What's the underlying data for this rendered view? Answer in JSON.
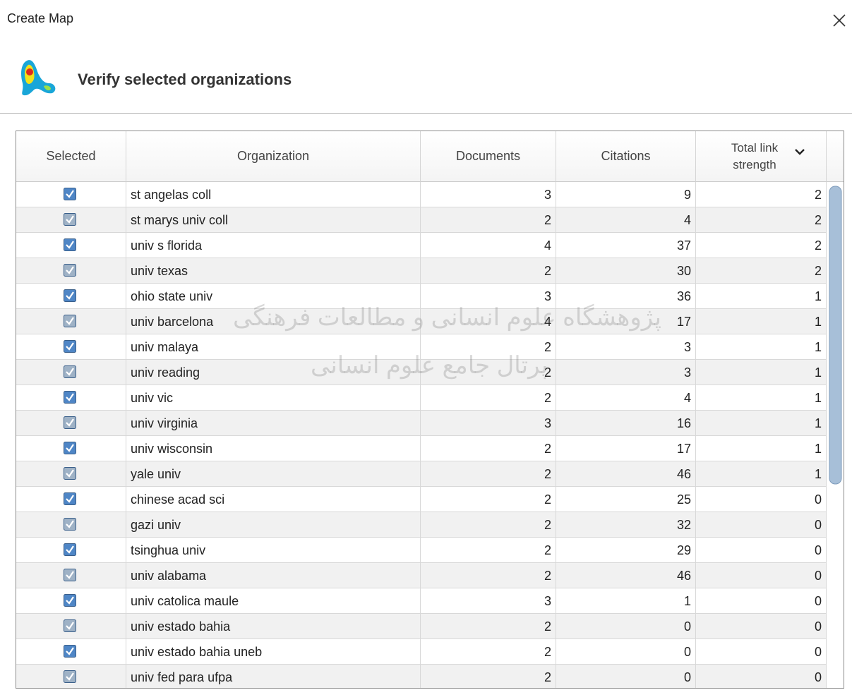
{
  "window": {
    "title": "Create Map"
  },
  "header": {
    "title": "Verify selected organizations"
  },
  "watermark": [
    "پژوهشگاه علوم انسانی و مطالعات فرهنگی",
    "پرتال جامع علوم انسانی"
  ],
  "table": {
    "columns": [
      "Selected",
      "Organization",
      "Documents",
      "Citations",
      "Total link strength"
    ],
    "rows": [
      [
        "st angelas coll",
        3,
        9,
        2
      ],
      [
        "st marys univ coll",
        2,
        4,
        2
      ],
      [
        "univ s florida",
        4,
        37,
        2
      ],
      [
        "univ texas",
        2,
        30,
        2
      ],
      [
        "ohio state univ",
        3,
        36,
        1
      ],
      [
        "univ barcelona",
        4,
        17,
        1
      ],
      [
        "univ malaya",
        2,
        3,
        1
      ],
      [
        "univ reading",
        2,
        3,
        1
      ],
      [
        "univ vic",
        2,
        4,
        1
      ],
      [
        "univ virginia",
        3,
        16,
        1
      ],
      [
        "univ wisconsin",
        2,
        17,
        1
      ],
      [
        "yale univ",
        2,
        46,
        1
      ],
      [
        "chinese acad sci",
        2,
        25,
        0
      ],
      [
        "gazi univ",
        2,
        32,
        0
      ],
      [
        "tsinghua univ",
        2,
        29,
        0
      ],
      [
        "univ alabama",
        2,
        46,
        0
      ],
      [
        "univ catolica maule",
        3,
        1,
        0
      ],
      [
        "univ estado bahia",
        2,
        0,
        0
      ],
      [
        "univ estado bahia uneb",
        2,
        0,
        0
      ],
      [
        "univ fed para ufpa",
        2,
        0,
        0
      ]
    ]
  }
}
